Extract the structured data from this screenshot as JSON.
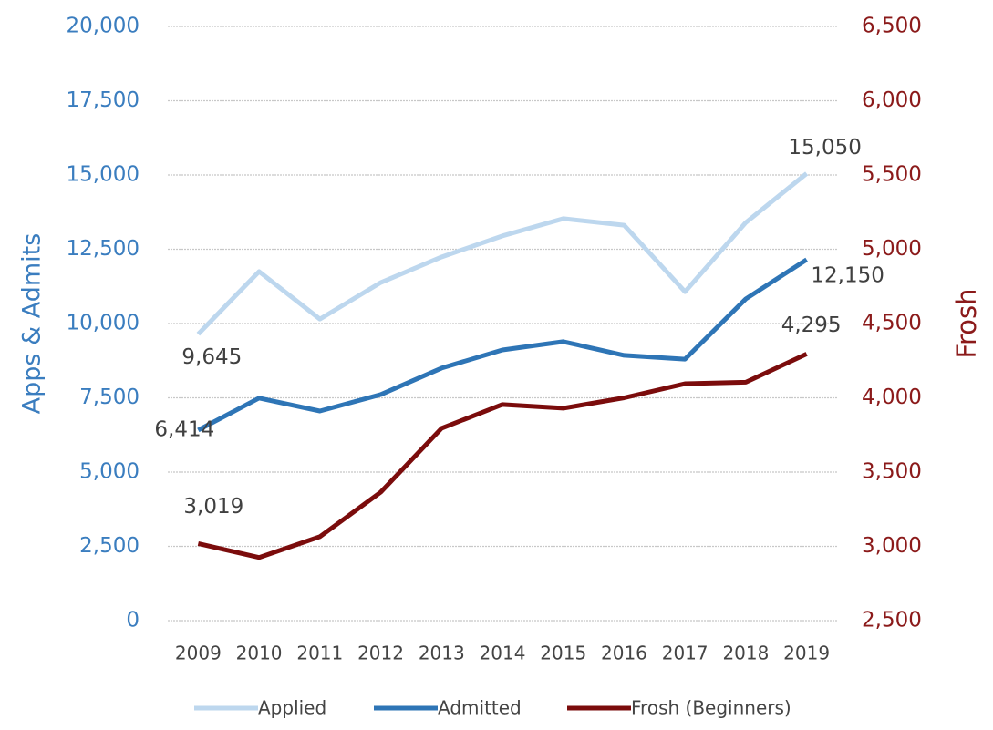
{
  "chart_data": {
    "type": "line",
    "ylabel": "Apps & Admits",
    "y2label": "Frosh",
    "categories": [
      "2009",
      "2010",
      "2011",
      "2012",
      "2013",
      "2014",
      "2015",
      "2016",
      "2017",
      "2018",
      "2019"
    ],
    "series": [
      {
        "name": "Applied",
        "color": "#bdd7ee",
        "values": [
          9645,
          11750,
          10150,
          11380,
          12240,
          12950,
          13530,
          13310,
          11070,
          13400,
          15050
        ],
        "value_labels": [
          "9,645",
          null,
          null,
          null,
          null,
          null,
          null,
          null,
          null,
          null,
          "15,050"
        ]
      },
      {
        "name": "Admitted",
        "color": "#2e75b6",
        "values": [
          6414,
          7490,
          7055,
          7610,
          8500,
          9110,
          9390,
          8930,
          8800,
          10830,
          12150
        ],
        "value_labels": [
          "6,414",
          null,
          null,
          null,
          null,
          null,
          null,
          null,
          null,
          null,
          "12,150"
        ]
      },
      {
        "name": "Frosh (Beginners)",
        "color": "#7b0c0c",
        "axis": "y2",
        "values": [
          3019,
          2925,
          3065,
          3365,
          3795,
          3955,
          3930,
          4000,
          4095,
          4105,
          4295
        ],
        "value_labels": [
          "3,019",
          null,
          null,
          null,
          null,
          null,
          null,
          null,
          null,
          null,
          "4,295"
        ]
      }
    ],
    "ylim": [
      0,
      20000
    ],
    "yticks": [
      0,
      {
        "value": 2500,
        "label": "2,500"
      },
      {
        "value": 5000,
        "label": "5,000"
      },
      {
        "value": 7500,
        "label": "7,500"
      },
      {
        "value": 10000,
        "label": "10,000"
      },
      {
        "value": 12500,
        "label": "12,500"
      },
      {
        "value": 15000,
        "label": "15,000"
      },
      {
        "value": 17500,
        "label": "17,500"
      },
      {
        "value": 20000,
        "label": "20,000"
      }
    ],
    "y2lim": [
      2500,
      6500
    ],
    "y2ticks": [
      {
        "value": 2500,
        "label": "2,500"
      },
      {
        "value": 3000,
        "label": "3,000"
      },
      {
        "value": 3500,
        "label": "3,500"
      },
      {
        "value": 4000,
        "label": "4,000"
      },
      {
        "value": 4500,
        "label": "4,500"
      },
      {
        "value": 5000,
        "label": "5,000"
      },
      {
        "value": 5500,
        "label": "5,500"
      },
      {
        "value": 6000,
        "label": "6,000"
      },
      {
        "value": 6500,
        "label": "6,500"
      }
    ],
    "ycolor": "#3a7dbf",
    "y2color": "#8b1a1a",
    "grid": true,
    "legend": "bottom"
  }
}
